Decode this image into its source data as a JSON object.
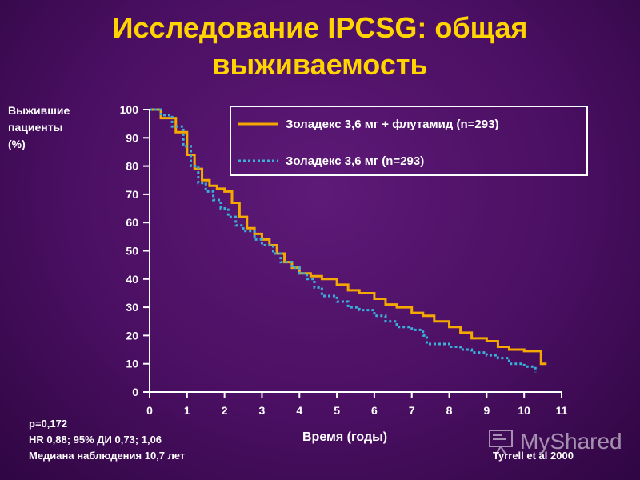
{
  "title": "Исследование IPCSG: общая выживаемость",
  "watermark": {
    "text": "MyShared",
    "icon": "projector-screen-icon"
  },
  "chart_data": {
    "type": "line",
    "title": "Исследование IPCSG: общая выживаемость",
    "ylabel_lines": [
      "Выжившие",
      "пациенты",
      "(%)"
    ],
    "xlabel": "Время (годы)",
    "xlim": [
      0,
      11
    ],
    "ylim": [
      0,
      100
    ],
    "x_ticks": [
      0,
      1,
      2,
      3,
      4,
      5,
      6,
      7,
      8,
      9,
      10,
      11
    ],
    "y_ticks": [
      0,
      10,
      20,
      30,
      40,
      50,
      60,
      70,
      80,
      90,
      100
    ],
    "grid": false,
    "legend_position": "top-right",
    "series": [
      {
        "name": "Золадекс 3,6 мг + флутамид (n=293)",
        "color": "#f5a800",
        "style": "solid",
        "x": [
          0,
          0.3,
          0.7,
          1.0,
          1.2,
          1.4,
          1.6,
          1.8,
          2.0,
          2.2,
          2.4,
          2.6,
          2.8,
          3.0,
          3.2,
          3.4,
          3.6,
          3.8,
          4.0,
          4.3,
          4.6,
          5.0,
          5.3,
          5.6,
          6.0,
          6.3,
          6.6,
          7.0,
          7.3,
          7.6,
          8.0,
          8.3,
          8.6,
          9.0,
          9.3,
          9.6,
          10.0,
          10.4,
          10.45,
          10.6
        ],
        "y": [
          100,
          97,
          92,
          84,
          79,
          75,
          73,
          72,
          71,
          67,
          62,
          58,
          56,
          54,
          52,
          49,
          46,
          44,
          42,
          41,
          40,
          38,
          36,
          35,
          33,
          31,
          30,
          28,
          27,
          25,
          23,
          21,
          19,
          18,
          16,
          15,
          14.5,
          14.5,
          10,
          10
        ]
      },
      {
        "name": "Золадекс 3,6 мг (n=293)",
        "color": "#3ab0d8",
        "style": "dotted",
        "x": [
          0,
          0.3,
          0.6,
          0.9,
          1.1,
          1.3,
          1.5,
          1.7,
          1.9,
          2.1,
          2.3,
          2.5,
          2.8,
          3.0,
          3.3,
          3.5,
          3.8,
          4.0,
          4.2,
          4.4,
          4.6,
          5.0,
          5.3,
          5.6,
          6.0,
          6.3,
          6.6,
          7.0,
          7.3,
          7.4,
          7.6,
          8.0,
          8.3,
          8.6,
          9.0,
          9.3,
          9.6,
          10.0,
          10.3
        ],
        "y": [
          100,
          98,
          94,
          87,
          80,
          74,
          71,
          68,
          65,
          62,
          59,
          57,
          54,
          52,
          49,
          46,
          44,
          42,
          40,
          37,
          34,
          32,
          30,
          29,
          27,
          25,
          23,
          22,
          20,
          17,
          17,
          16,
          15,
          14,
          13,
          12,
          10,
          9,
          7
        ]
      }
    ],
    "annotations": [
      "p=0,172",
      "HR 0,88; 95% ДИ 0,73; 1,06",
      "Медиана наблюдения 10,7 лет",
      "Tyrrell et al 2000"
    ]
  }
}
